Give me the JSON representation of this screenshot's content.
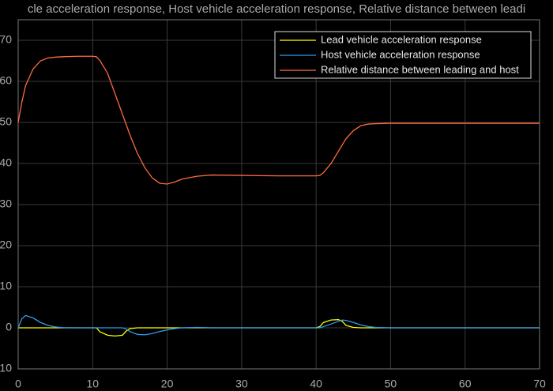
{
  "chart_data": {
    "type": "line",
    "title": "cle acceleration response, Host vehicle acceleration response, Relative distance between leadi",
    "x": [
      0,
      0.5,
      1,
      2,
      3,
      4,
      5,
      6,
      8,
      10,
      10.5,
      11,
      12,
      13,
      14,
      14.5,
      15,
      16,
      17,
      18,
      19,
      20,
      21,
      22,
      24,
      26,
      30,
      35,
      40,
      40.5,
      41,
      42,
      43,
      43.5,
      44,
      45,
      46,
      47,
      48,
      50,
      60,
      70
    ],
    "series": [
      {
        "name": "Lead vehicle acceleration response",
        "color": "#ffff00",
        "values": [
          0,
          0,
          0,
          0,
          0,
          0,
          0,
          0,
          0,
          0,
          0,
          -1,
          -1.8,
          -2,
          -1.8,
          -0.8,
          -0.2,
          0,
          0,
          0,
          0,
          0,
          0,
          0,
          0,
          0,
          0,
          0,
          0,
          0.3,
          1.3,
          1.9,
          2,
          1.6,
          0.6,
          0.1,
          0,
          0,
          0,
          0,
          0,
          0
        ]
      },
      {
        "name": "Host vehicle acceleration response",
        "color": "#2e9cf0",
        "values": [
          0,
          2.2,
          3,
          2.4,
          1.3,
          0.6,
          0.2,
          0.05,
          0,
          0,
          0,
          0,
          0,
          0,
          0,
          -0.3,
          -0.9,
          -1.6,
          -1.7,
          -1.4,
          -0.9,
          -0.5,
          -0.2,
          0,
          0.1,
          0,
          0,
          0,
          0,
          0,
          0.3,
          0.9,
          1.6,
          1.9,
          1.8,
          1.3,
          0.7,
          0.3,
          0.1,
          0,
          0,
          0
        ]
      },
      {
        "name": "Relative distance between leading and host",
        "color": "#ff6a3d",
        "values": [
          50,
          55,
          59,
          63,
          65,
          65.7,
          65.9,
          66,
          66.1,
          66.1,
          66,
          65,
          62,
          57,
          52,
          49.5,
          47,
          42.5,
          39,
          36.5,
          35.2,
          35,
          35.5,
          36.2,
          36.9,
          37.2,
          37.1,
          37,
          37,
          37.1,
          37.8,
          40,
          43,
          44.5,
          46,
          48,
          49.2,
          49.6,
          49.7,
          49.8,
          49.8,
          49.8
        ]
      }
    ],
    "xlim": [
      0,
      70
    ],
    "xticks": [
      0,
      10,
      20,
      30,
      40,
      50,
      60,
      70
    ],
    "ylim": [
      -10,
      75
    ],
    "yticks": [
      -10,
      0,
      10,
      20,
      30,
      40,
      50,
      60,
      70
    ],
    "grid": true,
    "legend": "upper right"
  }
}
